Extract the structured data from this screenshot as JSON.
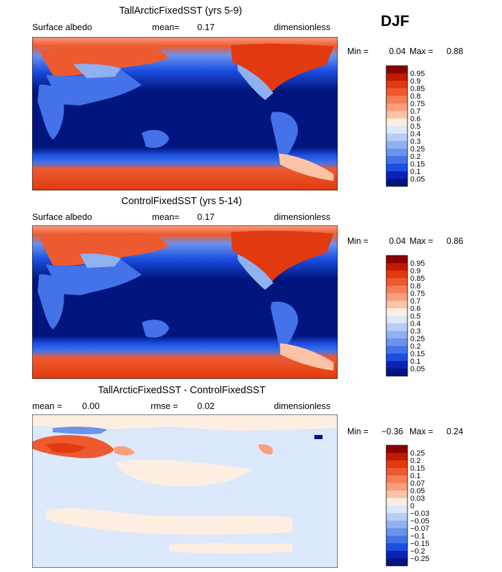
{
  "season": "DJF",
  "chart_data": [
    {
      "type": "heatmap",
      "title": "TallArcticFixedSST (yrs 5-9)",
      "variable": "Surface albedo",
      "mean_label": "mean=",
      "mean_value": "0.17",
      "units": "dimensionless",
      "min_label": "Min =",
      "min_value": "0.04",
      "max_label": "Max =",
      "max_value": "0.88",
      "colorbar": {
        "levels": [
          "0.95",
          "0.9",
          "0.85",
          "0.8",
          "0.75",
          "0.7",
          "0.6",
          "0.5",
          "0.4",
          "0.3",
          "0.25",
          "0.2",
          "0.15",
          "0.1",
          "0.05"
        ],
        "colors": [
          "#8b0000",
          "#c21a00",
          "#e03a0e",
          "#ee5a30",
          "#f57e55",
          "#fa9e7e",
          "#fdc3a6",
          "#feeee2",
          "#dce8fb",
          "#b6cdf6",
          "#8fb1f1",
          "#6a93ec",
          "#4472e8",
          "#1c4fe1",
          "#0a22b8",
          "#00157e"
        ]
      },
      "xrange": [
        0,
        360
      ],
      "yrange": [
        -90,
        90
      ]
    },
    {
      "type": "heatmap",
      "title": "ControlFixedSST (yrs 5-14)",
      "variable": "Surface albedo",
      "mean_label": "mean=",
      "mean_value": "0.17",
      "units": "dimensionless",
      "min_label": "Min =",
      "min_value": "0.04",
      "max_label": "Max =",
      "max_value": "0.86",
      "colorbar": {
        "levels": [
          "0.95",
          "0.9",
          "0.85",
          "0.8",
          "0.75",
          "0.7",
          "0.6",
          "0.5",
          "0.4",
          "0.3",
          "0.25",
          "0.2",
          "0.15",
          "0.1",
          "0.05"
        ],
        "colors": [
          "#8b0000",
          "#c21a00",
          "#e03a0e",
          "#ee5a30",
          "#f57e55",
          "#fa9e7e",
          "#fdc3a6",
          "#feeee2",
          "#dce8fb",
          "#b6cdf6",
          "#8fb1f1",
          "#6a93ec",
          "#4472e8",
          "#1c4fe1",
          "#0a22b8",
          "#00157e"
        ]
      },
      "xrange": [
        0,
        360
      ],
      "yrange": [
        -90,
        90
      ]
    },
    {
      "type": "heatmap",
      "title": "TallArcticFixedSST - ControlFixedSST",
      "mean_label": "mean =",
      "mean_value": "0.00",
      "rmse_label": "rmse =",
      "rmse_value": "0.02",
      "units": "dimensionless",
      "min_label": "Min =",
      "min_value": "−0.36",
      "max_label": "Max =",
      "max_value": "0.24",
      "colorbar": {
        "levels": [
          "0.25",
          "0.2",
          "0.15",
          "0.1",
          "0.07",
          "0.05",
          "0.03",
          "0",
          "−0.03",
          "−0.05",
          "−0.07",
          "−0.1",
          "−0.15",
          "−0.2",
          "−0.25"
        ],
        "colors": [
          "#8b0000",
          "#c21a00",
          "#e03a0e",
          "#ee5a30",
          "#f57e55",
          "#fa9e7e",
          "#fdc3a6",
          "#feeee2",
          "#dce8fb",
          "#b6cdf6",
          "#8fb1f1",
          "#6a93ec",
          "#4472e8",
          "#1c4fe1",
          "#0a22b8",
          "#00157e"
        ]
      },
      "xrange": [
        0,
        360
      ],
      "yrange": [
        -90,
        90
      ]
    }
  ]
}
